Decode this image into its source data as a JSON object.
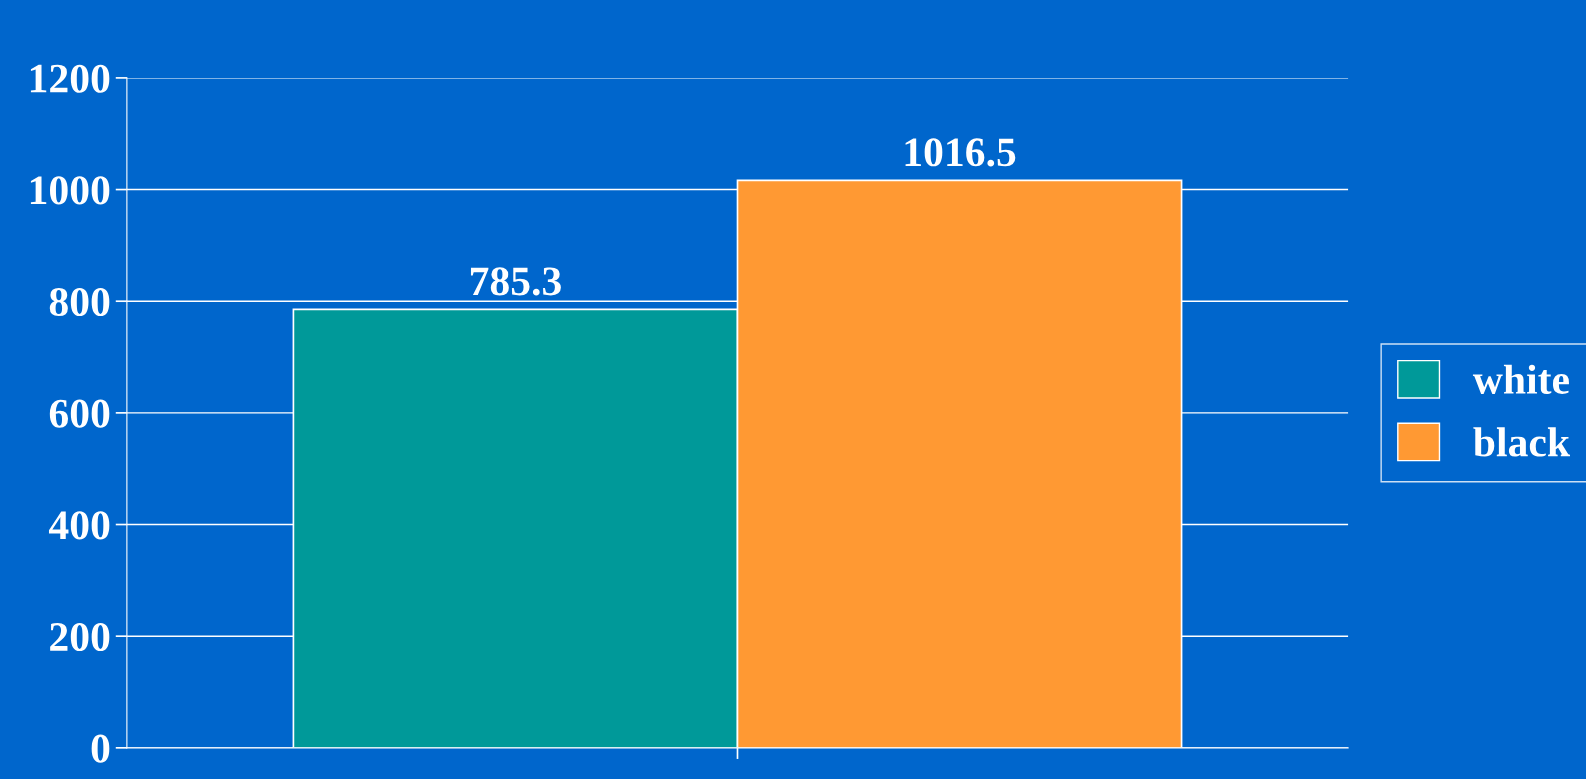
{
  "chart_data": {
    "type": "bar",
    "categories": [
      null
    ],
    "series": [
      {
        "name": "white",
        "color": "#009999",
        "values": [
          785.3
        ]
      },
      {
        "name": "black",
        "color": "#ff9933",
        "values": [
          1016.5
        ]
      }
    ],
    "ylim": [
      0,
      1200
    ],
    "yticks": [
      0,
      200,
      400,
      600,
      800,
      1000,
      1200
    ],
    "grid": "y",
    "legend": "right",
    "data_labels": true
  }
}
